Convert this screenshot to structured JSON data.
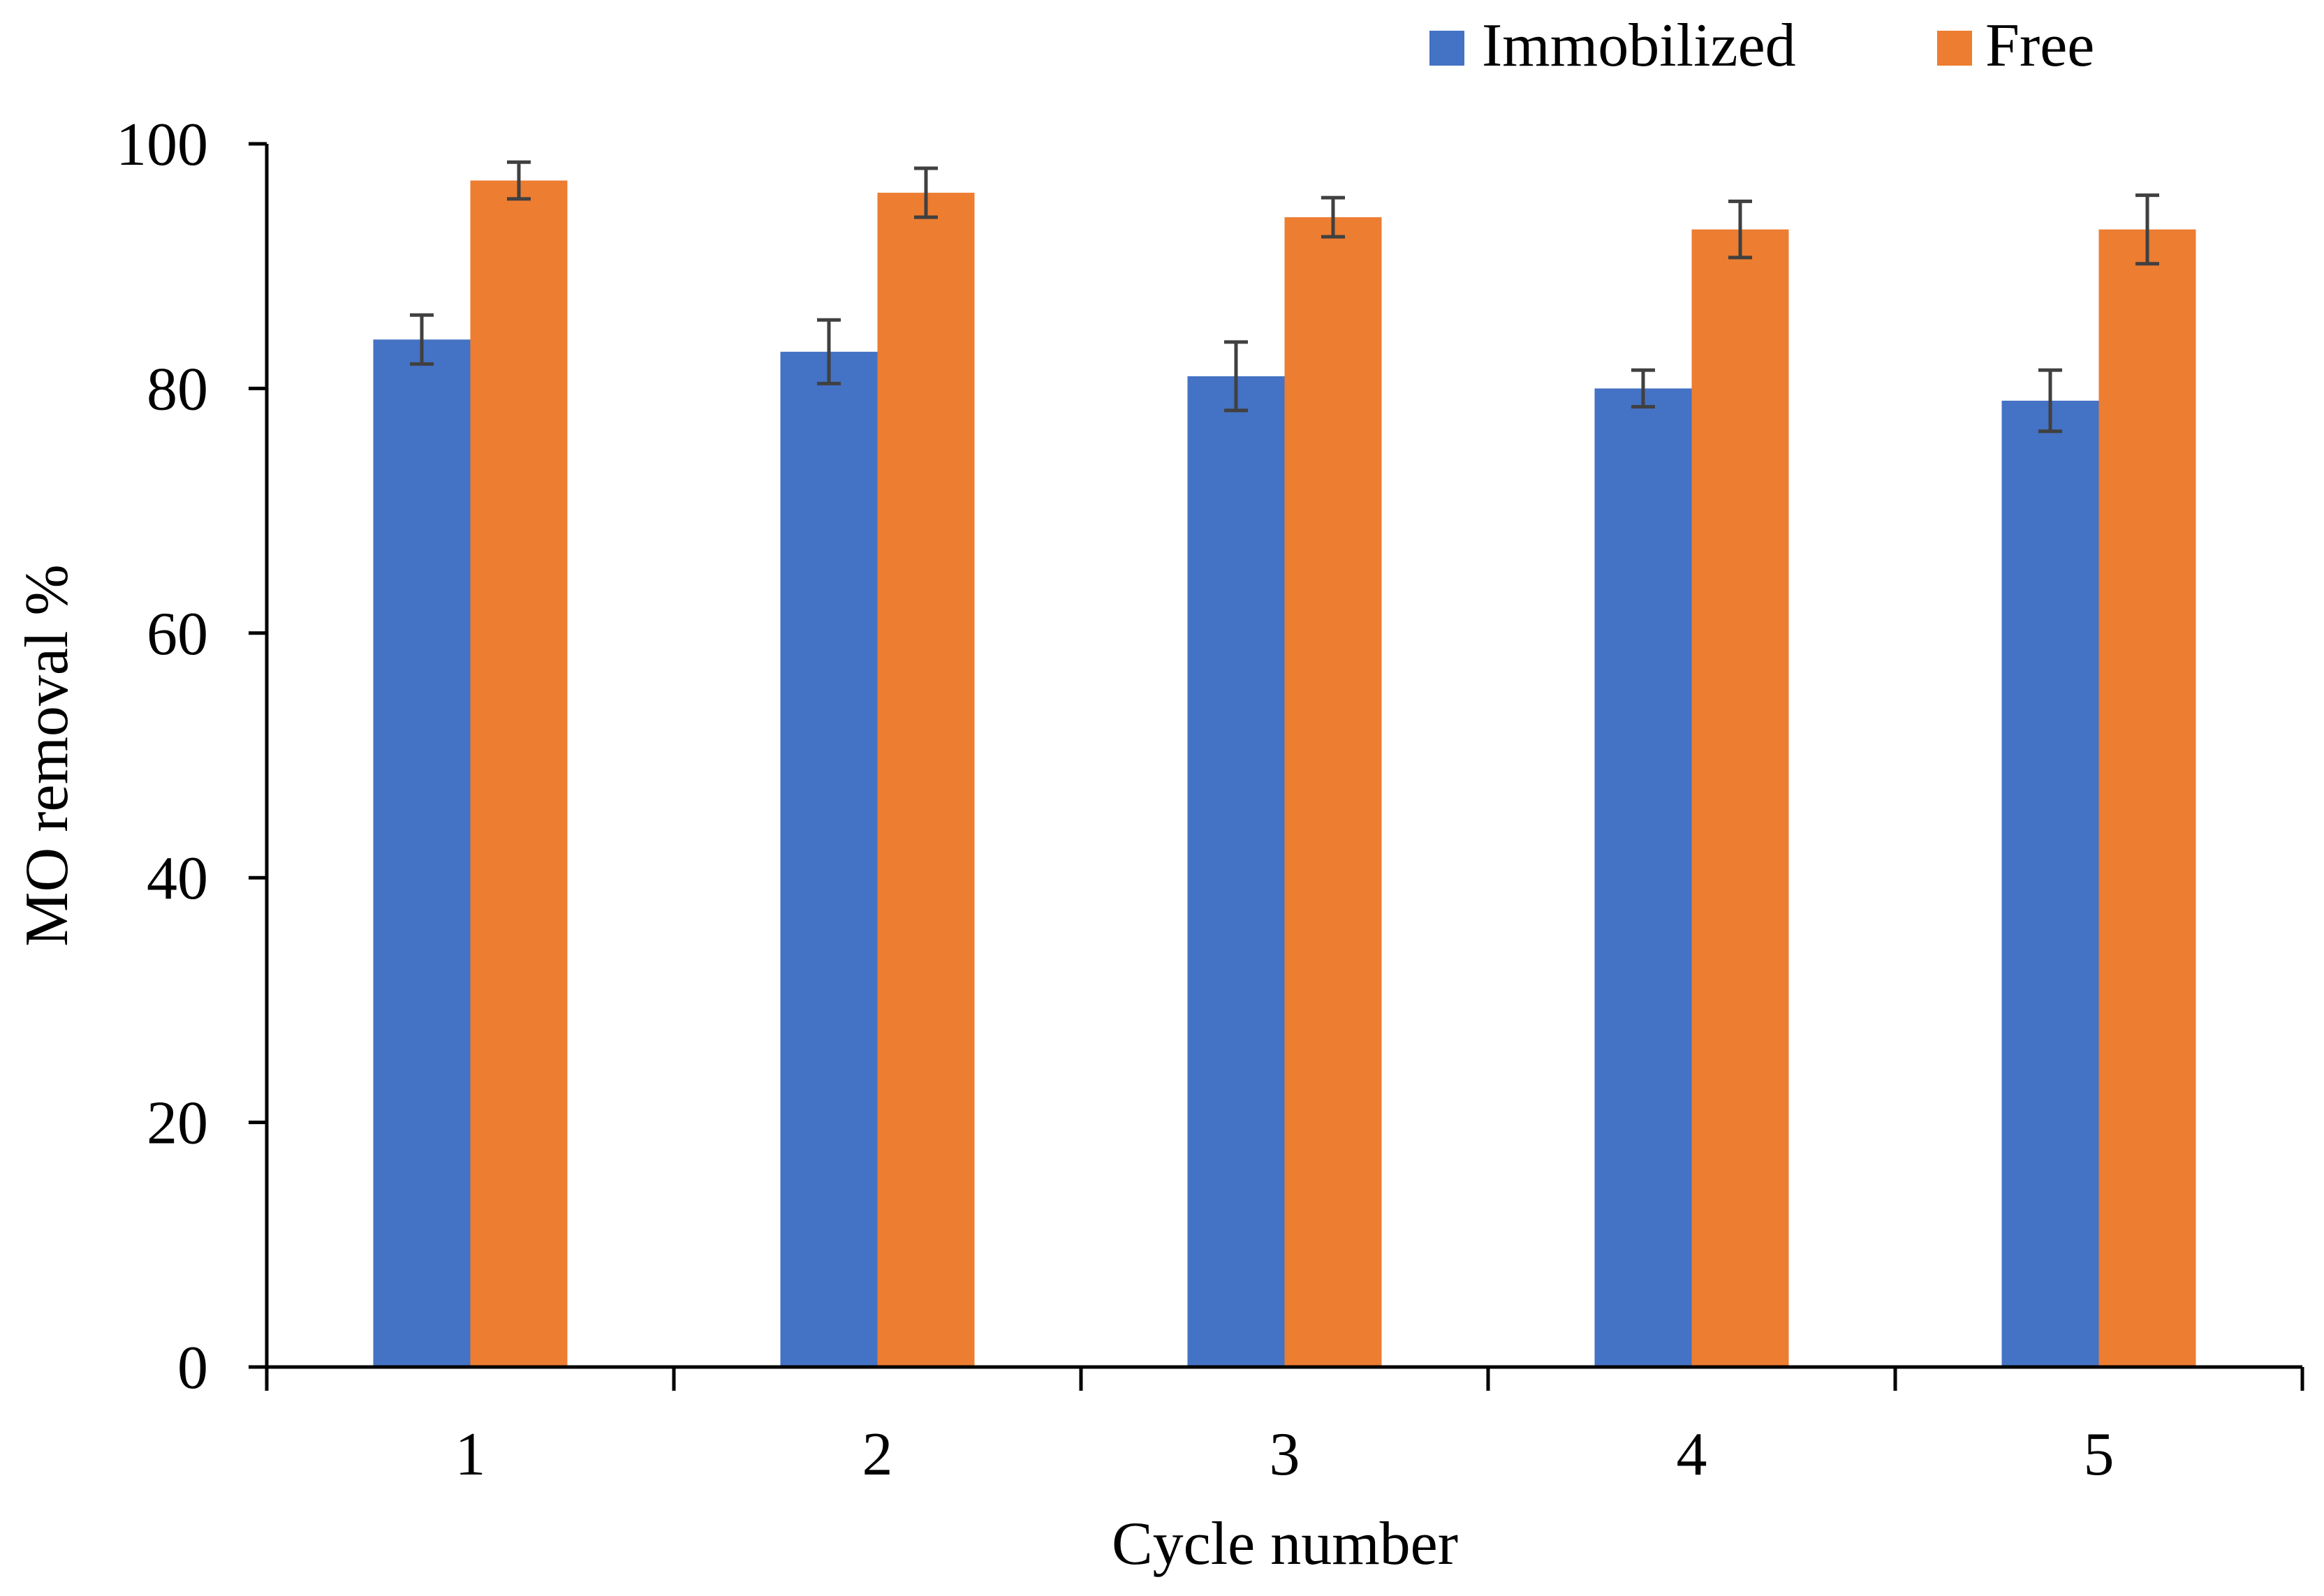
{
  "chart_data": {
    "type": "bar",
    "title": "",
    "xlabel": "Cycle number",
    "ylabel": "MO removal %",
    "categories": [
      "1",
      "2",
      "3",
      "4",
      "5"
    ],
    "ylim": [
      0,
      100
    ],
    "yticks": [
      "0",
      "20",
      "40",
      "60",
      "80",
      "100"
    ],
    "grid": false,
    "legend_position": "top-right",
    "series": [
      {
        "name": "Immobilized",
        "color": "#4472C4",
        "values": [
          84,
          83,
          81,
          80,
          79
        ],
        "errors": [
          2.0,
          2.6,
          2.8,
          1.5,
          2.5
        ]
      },
      {
        "name": "Free",
        "color": "#ED7D31",
        "values": [
          97,
          96,
          94,
          93,
          93
        ],
        "errors": [
          1.5,
          2.0,
          1.6,
          2.3,
          2.8
        ]
      }
    ],
    "error_bar_color": "#404040"
  }
}
